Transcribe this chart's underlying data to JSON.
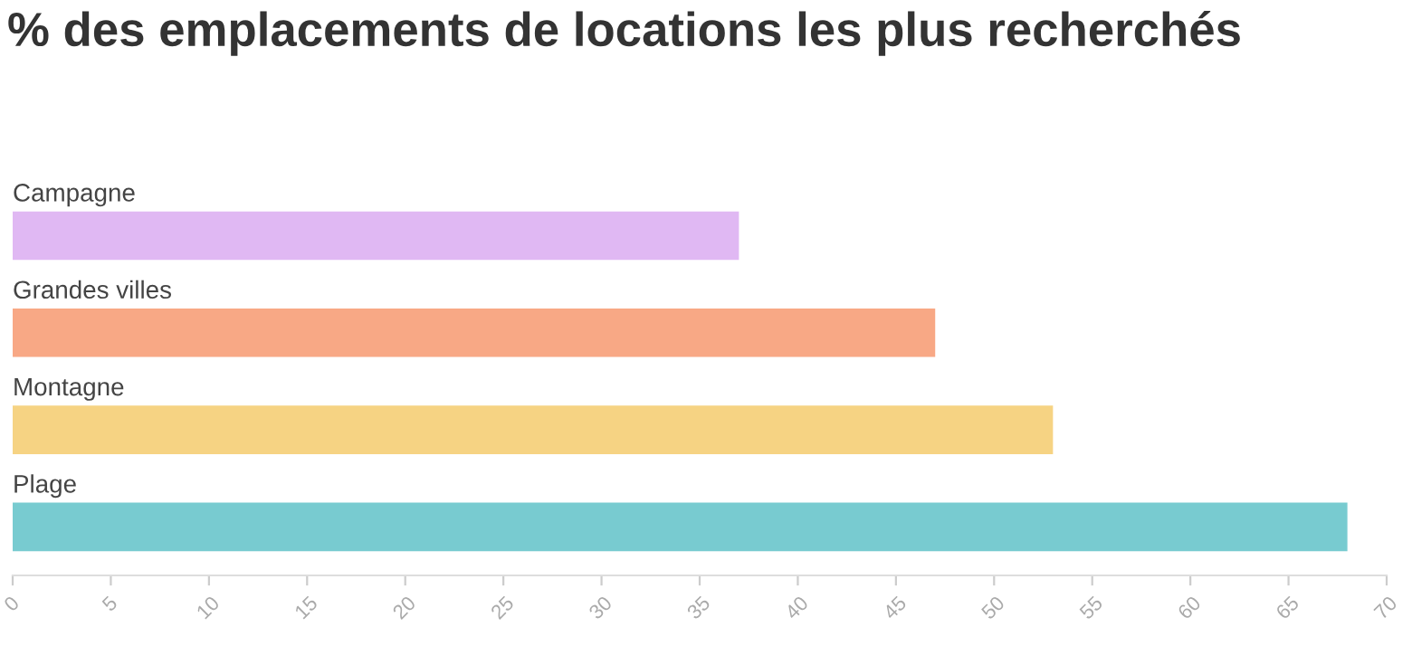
{
  "chart_data": {
    "type": "bar",
    "orientation": "horizontal",
    "title": "% des emplacements de locations les plus recherchés",
    "categories": [
      "Campagne",
      "Grandes villes",
      "Montagne",
      "Plage"
    ],
    "values": [
      37,
      47,
      53,
      68
    ],
    "colors": [
      "#e0b8f3",
      "#f8a885",
      "#f6d383",
      "#78cbd0"
    ],
    "xlim": [
      0,
      70
    ],
    "xticks": [
      0,
      5,
      10,
      15,
      20,
      25,
      30,
      35,
      40,
      45,
      50,
      55,
      60,
      65,
      70
    ],
    "grid": false
  }
}
